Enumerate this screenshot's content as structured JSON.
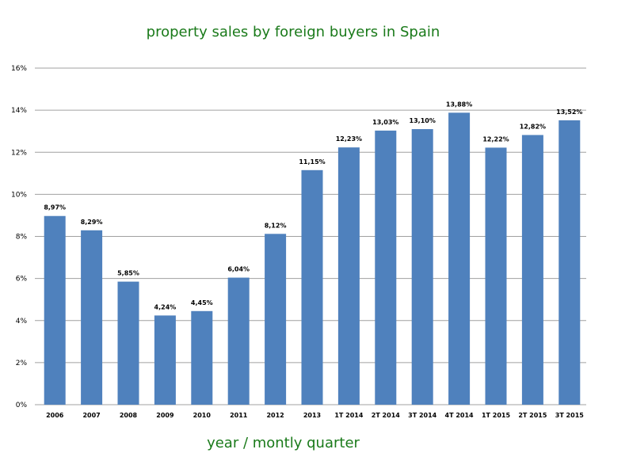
{
  "chart_data": {
    "type": "bar",
    "title": "property sales by foreign buyers in Spain",
    "xlabel": "year / montly quarter",
    "ylabel": "",
    "categories": [
      "2006",
      "2007",
      "2008",
      "2009",
      "2010",
      "2011",
      "2012",
      "2013",
      "1T 2014",
      "2T 2014",
      "3T 2014",
      "4T 2014",
      "1T 2015",
      "2T 2015",
      "3T 2015"
    ],
    "values": [
      8.97,
      8.29,
      5.85,
      4.24,
      4.45,
      6.04,
      8.12,
      11.15,
      12.23,
      13.03,
      13.1,
      13.88,
      12.22,
      12.82,
      13.52
    ],
    "data_labels": [
      "8,97%",
      "8,29%",
      "5,85%",
      "4,24%",
      "4,45%",
      "6,04%",
      "8,12%",
      "11,15%",
      "12,23%",
      "13,03%",
      "13,10%",
      "13,88%",
      "12,22%",
      "12,82%",
      "13,52%"
    ],
    "y_ticks": [
      0,
      2,
      4,
      6,
      8,
      10,
      12,
      14,
      16
    ],
    "y_tick_labels": [
      "0%",
      "2%",
      "4%",
      "6%",
      "8%",
      "10%",
      "12%",
      "14%",
      "16%"
    ],
    "ylim": [
      0,
      16
    ],
    "grid": true,
    "legend": "none",
    "colors": {
      "bar": "#4f81bd",
      "grid": "#a0a0a0",
      "title": "#1a7a1a"
    }
  }
}
